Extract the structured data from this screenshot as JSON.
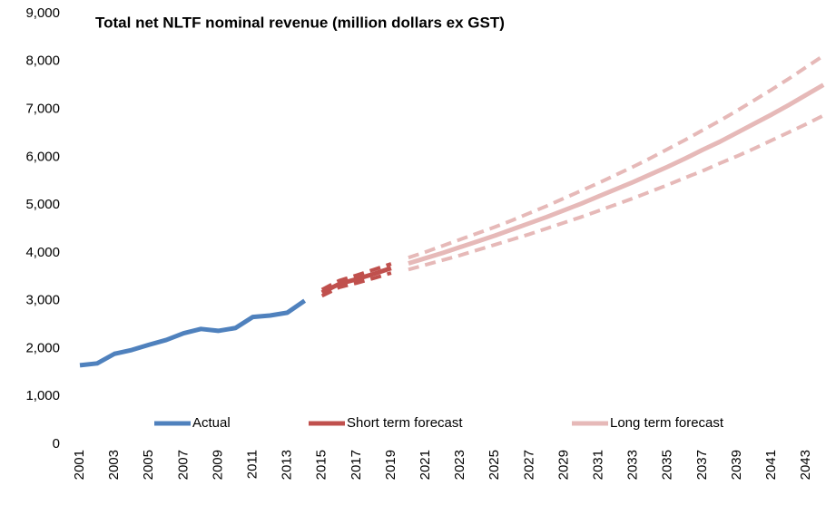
{
  "chart_data": {
    "type": "line",
    "title": "Total net NLTF nominal revenue (million dollars ex GST)",
    "categories": [
      "2001",
      null,
      "2003",
      null,
      "2005",
      null,
      "2007",
      null,
      "2009",
      null,
      "2011",
      null,
      "2013",
      null,
      "2015",
      null,
      "2017",
      null,
      "2019",
      null,
      "2021",
      null,
      "2023",
      null,
      "2025",
      null,
      "2027",
      null,
      "2029",
      null,
      "2031",
      null,
      "2033",
      null,
      "2035",
      null,
      "2037",
      null,
      "2039",
      null,
      "2041",
      null,
      "2043",
      null
    ],
    "ylim": [
      0,
      9000
    ],
    "yticks": [
      0,
      {
        "value": 1000,
        "label": "1,000"
      },
      {
        "value": 2000,
        "label": "2,000"
      },
      {
        "value": 3000,
        "label": "3,000"
      },
      {
        "value": 4000,
        "label": "4,000"
      },
      {
        "value": 5000,
        "label": "5,000"
      },
      {
        "value": 6000,
        "label": "6,000"
      },
      {
        "value": 7000,
        "label": "7,000"
      },
      {
        "value": 8000,
        "label": "8,000"
      },
      {
        "value": 9000,
        "label": "9,000"
      }
    ],
    "grid": false,
    "legend": "bottom",
    "series": [
      {
        "name": "Actual",
        "color": "#4f81bd",
        "values": [
          1650,
          1690,
          1890,
          1970,
          2080,
          2180,
          2320,
          2410,
          2370,
          2430,
          2660,
          2690,
          2750,
          3000,
          null,
          null,
          null,
          null,
          null,
          null,
          null,
          null,
          null,
          null,
          null,
          null,
          null,
          null,
          null,
          null,
          null,
          null,
          null,
          null,
          null,
          null,
          null,
          null,
          null,
          null,
          null,
          null,
          null,
          null
        ]
      },
      {
        "name": "Short term forecast",
        "color": "#c0504d",
        "values": [
          null,
          null,
          null,
          null,
          null,
          null,
          null,
          null,
          null,
          null,
          null,
          null,
          null,
          null,
          3170,
          3350,
          3450,
          3560,
          3680,
          null,
          null,
          null,
          null,
          null,
          null,
          null,
          null,
          null,
          null,
          null,
          null,
          null,
          null,
          null,
          null,
          null,
          null,
          null,
          null,
          null,
          null,
          null,
          null,
          null
        ]
      },
      {
        "color": "#c0504d",
        "dashed": true,
        "values": [
          null,
          null,
          null,
          null,
          null,
          null,
          null,
          null,
          null,
          null,
          null,
          null,
          null,
          null,
          3230,
          3420,
          3530,
          3650,
          3770,
          null,
          null,
          null,
          null,
          null,
          null,
          null,
          null,
          null,
          null,
          null,
          null,
          null,
          null,
          null,
          null,
          null,
          null,
          null,
          null,
          null,
          null,
          null,
          null,
          null
        ]
      },
      {
        "color": "#c0504d",
        "dashed": true,
        "values": [
          null,
          null,
          null,
          null,
          null,
          null,
          null,
          null,
          null,
          null,
          null,
          null,
          null,
          null,
          3100,
          3280,
          3370,
          3470,
          3580,
          null,
          null,
          null,
          null,
          null,
          null,
          null,
          null,
          null,
          null,
          null,
          null,
          null,
          null,
          null,
          null,
          null,
          null,
          null,
          null,
          null,
          null,
          null,
          null,
          null
        ]
      },
      {
        "name": "Long term forecast",
        "color": "#e6b9b8",
        "values": [
          null,
          null,
          null,
          null,
          null,
          null,
          null,
          null,
          null,
          null,
          null,
          null,
          null,
          null,
          null,
          null,
          null,
          null,
          null,
          3780,
          3890,
          4000,
          4120,
          4240,
          4360,
          4490,
          4620,
          4750,
          4890,
          5030,
          5180,
          5330,
          5480,
          5640,
          5800,
          5970,
          6150,
          6320,
          6510,
          6700,
          6890,
          7090,
          7300,
          7510
        ]
      },
      {
        "color": "#e6b9b8",
        "dashed": true,
        "values": [
          null,
          null,
          null,
          null,
          null,
          null,
          null,
          null,
          null,
          null,
          null,
          null,
          null,
          null,
          null,
          null,
          null,
          null,
          null,
          3900,
          4020,
          4150,
          4280,
          4410,
          4540,
          4680,
          4830,
          4980,
          5140,
          5300,
          5460,
          5630,
          5800,
          5980,
          6170,
          6360,
          6560,
          6760,
          6970,
          7190,
          7410,
          7640,
          7880,
          8120
        ]
      },
      {
        "color": "#e6b9b8",
        "dashed": true,
        "values": [
          null,
          null,
          null,
          null,
          null,
          null,
          null,
          null,
          null,
          null,
          null,
          null,
          null,
          null,
          null,
          null,
          null,
          null,
          null,
          3650,
          3750,
          3850,
          3950,
          4060,
          4170,
          4280,
          4390,
          4510,
          4630,
          4750,
          4880,
          5010,
          5140,
          5280,
          5420,
          5570,
          5710,
          5870,
          6020,
          6180,
          6350,
          6520,
          6690,
          6870
        ]
      }
    ]
  }
}
